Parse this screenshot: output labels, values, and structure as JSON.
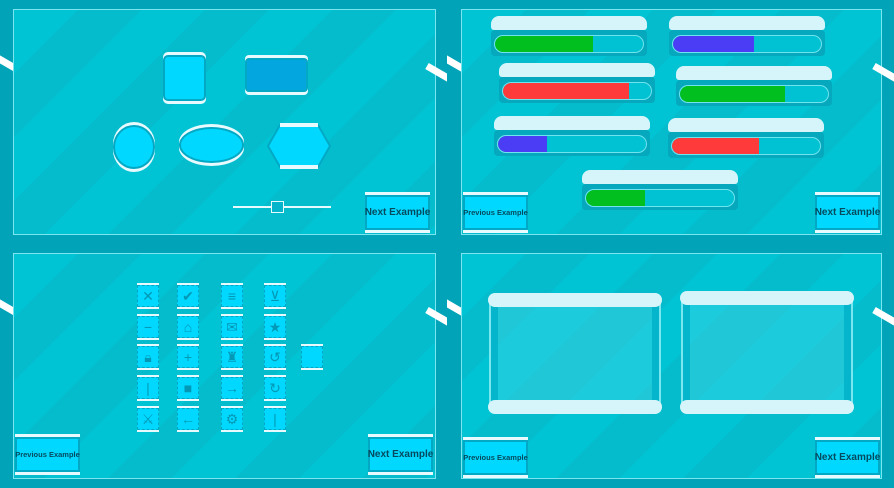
{
  "buttons": {
    "next": "Next Example",
    "prev": "Previous Example"
  },
  "colors": {
    "green": "#00bf1f",
    "blue": "#4b3cf5",
    "red": "#ff3a3a",
    "panel": "#00c4d4"
  },
  "progress_bars": [
    {
      "color": "green",
      "value": 0.66
    },
    {
      "color": "blue",
      "value": 0.55
    },
    {
      "color": "red",
      "value": 0.85
    },
    {
      "color": "green",
      "value": 0.71
    },
    {
      "color": "blue",
      "value": 0.33
    },
    {
      "color": "red",
      "value": 0.59
    },
    {
      "color": "green",
      "value": 0.4
    }
  ],
  "icon_buttons": [
    [
      "close-icon",
      "minus-icon",
      "lock-icon",
      "vertical-bar-icon",
      "crossed-swords-icon"
    ],
    [
      "check-icon",
      "home-icon",
      "plus-icon",
      "stop-icon",
      "arrow-left-icon"
    ],
    [
      "menu-icon",
      "scroll-icon",
      "trophy-icon",
      "arrow-right-icon",
      "gear-icon"
    ],
    [
      "cart-icon",
      "star-icon",
      "undo-icon",
      "restart-icon",
      "vertical-bar-icon"
    ],
    [
      "blank-icon"
    ]
  ],
  "slider": {
    "value": 0.45
  }
}
